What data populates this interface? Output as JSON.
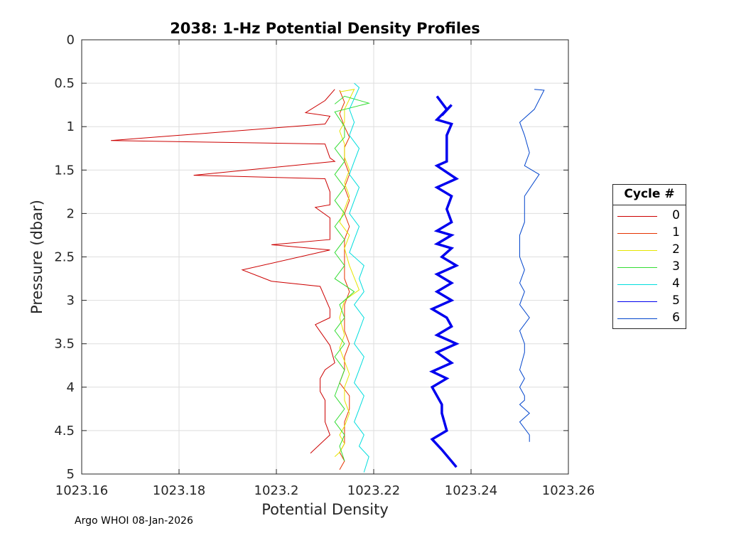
{
  "chart_data": {
    "type": "line",
    "title": "2038: 1-Hz Potential Density Profiles",
    "xlabel": "Potential Density",
    "ylabel": "Pressure (dbar)",
    "xlim": [
      1023.16,
      1023.26
    ],
    "ylim": [
      0,
      5
    ],
    "y_reversed": true,
    "grid": true,
    "xticks": [
      "1023.16",
      "1023.18",
      "1023.2",
      "1023.22",
      "1023.24",
      "1023.26"
    ],
    "yticks": [
      "0",
      "0.5",
      "1",
      "1.5",
      "2",
      "2.5",
      "3",
      "3.5",
      "4",
      "4.5",
      "5"
    ],
    "legend_title": "Cycle #",
    "legend_position": "outside-right",
    "series": [
      {
        "name": "0",
        "color": "#cc0000",
        "x": [
          1023.212,
          1023.21,
          1023.206,
          1023.211,
          1023.21,
          1023.166,
          1023.21,
          1023.211,
          1023.212,
          1023.183,
          1023.21,
          1023.211,
          1023.211,
          1023.208,
          1023.211,
          1023.211,
          1023.199,
          1023.211,
          1023.193,
          1023.199,
          1023.209,
          1023.211,
          1023.211,
          1023.208,
          1023.211,
          1023.212,
          1023.21,
          1023.209,
          1023.209,
          1023.21,
          1023.21,
          1023.211,
          1023.207
        ],
        "y": [
          0.57,
          0.7,
          0.84,
          0.88,
          0.97,
          1.16,
          1.2,
          1.36,
          1.4,
          1.56,
          1.6,
          1.75,
          1.9,
          1.93,
          2.05,
          2.3,
          2.36,
          2.42,
          2.65,
          2.78,
          2.84,
          3.1,
          3.2,
          3.28,
          3.52,
          3.72,
          3.8,
          3.9,
          4.05,
          4.15,
          4.4,
          4.55,
          4.76
        ]
      },
      {
        "name": "1",
        "color": "#e63300",
        "x": [
          1023.213,
          1023.214,
          1023.213,
          1023.214,
          1023.215,
          1023.214,
          1023.214,
          1023.215,
          1023.214,
          1023.215,
          1023.214,
          1023.215,
          1023.214,
          1023.214,
          1023.214,
          1023.214,
          1023.215,
          1023.214,
          1023.214,
          1023.214,
          1023.215,
          1023.214,
          1023.214,
          1023.213,
          1023.215,
          1023.215,
          1023.214,
          1023.214,
          1023.214,
          1023.213,
          1023.214,
          1023.213
        ],
        "y": [
          0.58,
          0.72,
          0.85,
          1.0,
          1.12,
          1.24,
          1.4,
          1.55,
          1.7,
          1.85,
          2.0,
          2.15,
          2.3,
          2.45,
          2.6,
          2.75,
          2.9,
          3.05,
          3.2,
          3.35,
          3.5,
          3.65,
          3.8,
          3.95,
          4.1,
          4.25,
          4.4,
          4.55,
          4.65,
          4.75,
          4.85,
          4.95
        ]
      },
      {
        "name": "2",
        "color": "#e6e600",
        "x": [
          1023.213,
          1023.216,
          1023.214,
          1023.214,
          1023.213,
          1023.214,
          1023.214,
          1023.215,
          1023.214,
          1023.215,
          1023.214,
          1023.213,
          1023.215,
          1023.214,
          1023.215,
          1023.217,
          1023.214,
          1023.213,
          1023.214,
          1023.213,
          1023.214,
          1023.215,
          1023.214,
          1023.214,
          1023.215,
          1023.214,
          1023.213,
          1023.214,
          1023.213,
          1023.212
        ],
        "y": [
          0.6,
          0.57,
          0.8,
          0.95,
          1.05,
          1.2,
          1.35,
          1.5,
          1.65,
          1.8,
          1.95,
          2.1,
          2.25,
          2.4,
          2.6,
          2.88,
          3.0,
          3.2,
          3.4,
          3.55,
          3.7,
          3.85,
          4.0,
          4.15,
          4.3,
          4.45,
          4.55,
          4.65,
          4.75,
          4.8
        ]
      },
      {
        "name": "3",
        "color": "#33dd33",
        "x": [
          1023.212,
          1023.214,
          1023.219,
          1023.212,
          1023.214,
          1023.214,
          1023.212,
          1023.214,
          1023.212,
          1023.214,
          1023.212,
          1023.214,
          1023.212,
          1023.214,
          1023.212,
          1023.214,
          1023.212,
          1023.216,
          1023.213,
          1023.214,
          1023.212,
          1023.214,
          1023.212,
          1023.214,
          1023.213,
          1023.212,
          1023.214,
          1023.212,
          1023.214,
          1023.213,
          1023.214
        ],
        "y": [
          0.74,
          0.65,
          0.73,
          0.83,
          1.0,
          1.12,
          1.25,
          1.4,
          1.55,
          1.7,
          1.85,
          2.0,
          2.15,
          2.3,
          2.45,
          2.6,
          2.75,
          2.9,
          3.05,
          3.2,
          3.35,
          3.5,
          3.65,
          3.8,
          3.95,
          4.1,
          4.25,
          4.4,
          4.55,
          4.68,
          4.85
        ]
      },
      {
        "name": "4",
        "color": "#00dddd",
        "x": [
          1023.216,
          1023.217,
          1023.215,
          1023.216,
          1023.215,
          1023.217,
          1023.216,
          1023.215,
          1023.217,
          1023.216,
          1023.215,
          1023.217,
          1023.216,
          1023.215,
          1023.218,
          1023.217,
          1023.218,
          1023.216,
          1023.218,
          1023.217,
          1023.216,
          1023.218,
          1023.217,
          1023.216,
          1023.218,
          1023.217,
          1023.216,
          1023.218,
          1023.217,
          1023.219,
          1023.218
        ],
        "y": [
          0.5,
          0.55,
          0.8,
          0.95,
          1.1,
          1.25,
          1.4,
          1.55,
          1.7,
          1.85,
          2.0,
          2.15,
          2.3,
          2.45,
          2.6,
          2.75,
          2.9,
          3.05,
          3.2,
          3.35,
          3.5,
          3.65,
          3.8,
          3.95,
          4.1,
          4.25,
          4.4,
          4.55,
          4.68,
          4.8,
          4.98
        ]
      },
      {
        "name": "5",
        "color": "#0000ee",
        "x": [
          1023.233,
          1023.235,
          1023.234,
          1023.236,
          1023.233,
          1023.236,
          1023.235,
          1023.235,
          1023.235,
          1023.233,
          1023.237,
          1023.233,
          1023.236,
          1023.235,
          1023.236,
          1023.233,
          1023.236,
          1023.233,
          1023.236,
          1023.234,
          1023.237,
          1023.233,
          1023.236,
          1023.233,
          1023.236,
          1023.232,
          1023.235,
          1023.236,
          1023.233,
          1023.237,
          1023.233,
          1023.236,
          1023.232,
          1023.235,
          1023.232,
          1023.234,
          1023.234,
          1023.235,
          1023.232,
          1023.234,
          1023.237
        ],
        "y": [
          0.65,
          0.8,
          0.87,
          0.75,
          0.92,
          0.97,
          1.1,
          1.3,
          1.4,
          1.45,
          1.6,
          1.7,
          1.8,
          1.95,
          2.1,
          2.2,
          2.25,
          2.35,
          2.4,
          2.5,
          2.6,
          2.7,
          2.8,
          2.9,
          3.0,
          3.1,
          3.2,
          3.3,
          3.4,
          3.5,
          3.6,
          3.72,
          3.82,
          3.9,
          4.0,
          4.2,
          4.3,
          4.5,
          4.6,
          4.72,
          4.92
        ]
      },
      {
        "name": "6",
        "color": "#0044cc",
        "x": [
          1023.253,
          1023.255,
          1023.253,
          1023.25,
          1023.251,
          1023.252,
          1023.251,
          1023.254,
          1023.251,
          1023.251,
          1023.25,
          1023.25,
          1023.251,
          1023.25,
          1023.251,
          1023.25,
          1023.252,
          1023.25,
          1023.251,
          1023.251,
          1023.25,
          1023.251,
          1023.25,
          1023.251,
          1023.251,
          1023.25,
          1023.252,
          1023.25,
          1023.252,
          1023.252
        ],
        "y": [
          0.57,
          0.58,
          0.8,
          0.95,
          1.1,
          1.3,
          1.45,
          1.55,
          1.8,
          2.1,
          2.25,
          2.5,
          2.65,
          2.8,
          2.9,
          3.05,
          3.2,
          3.35,
          3.5,
          3.6,
          3.8,
          3.9,
          4.0,
          4.1,
          4.15,
          4.2,
          4.3,
          4.4,
          4.55,
          4.63
        ]
      }
    ]
  },
  "footer": {
    "text": "Argo WHOI 08-Jan-2026"
  }
}
